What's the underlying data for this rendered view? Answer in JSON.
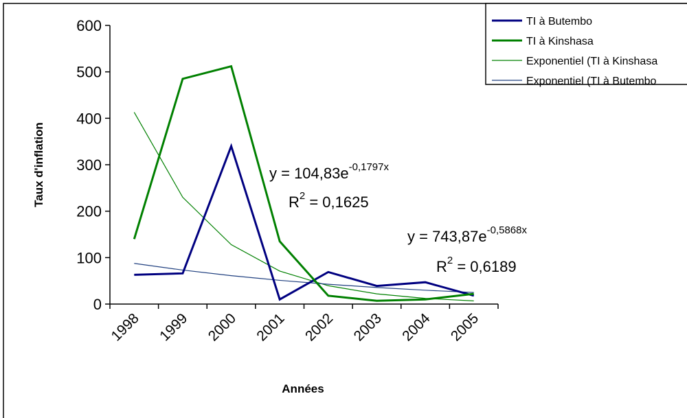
{
  "chart_data": {
    "type": "line",
    "y_label": "Taux d'inflation",
    "x_label": "Années",
    "categories": [
      "1998",
      "1999",
      "2000",
      "2001",
      "2002",
      "2003",
      "2004",
      "2005"
    ],
    "ylim": [
      0,
      600
    ],
    "yticks": [
      0,
      100,
      200,
      300,
      400,
      500,
      600
    ],
    "series": [
      {
        "name": "TI à Butembo",
        "color": "#000080",
        "width": 3,
        "values": [
          63,
          66,
          340,
          10,
          69,
          39,
          47,
          18
        ]
      },
      {
        "name": "TI à Kinshasa",
        "color": "#008000",
        "width": 3,
        "values": [
          140,
          485,
          512,
          135,
          18,
          7,
          10,
          22
        ]
      },
      {
        "name": "Exponentiel (TI à Kinshasa",
        "color": "#008000",
        "width": 1.2,
        "values": [
          413,
          230,
          128,
          71,
          39.5,
          22,
          12.2,
          6.8
        ]
      },
      {
        "name": "Exponentiel (TI à Butembo",
        "color": "#1f3f7f",
        "width": 1.2,
        "values": [
          87.6,
          73.2,
          61.1,
          51.1,
          42.7,
          35.6,
          29.8,
          24.9
        ]
      }
    ],
    "annotations": [
      {
        "base": "y = 104,83e",
        "sup": "-0,1797x",
        "r": "R",
        "r_sup": "2",
        "r_value": " = 0,1625"
      },
      {
        "base": "y = 743,87e",
        "sup": "-0,5868x",
        "r": "R",
        "r_sup": "2",
        "r_value": " = 0,6189"
      }
    ],
    "legend": "top-right"
  }
}
